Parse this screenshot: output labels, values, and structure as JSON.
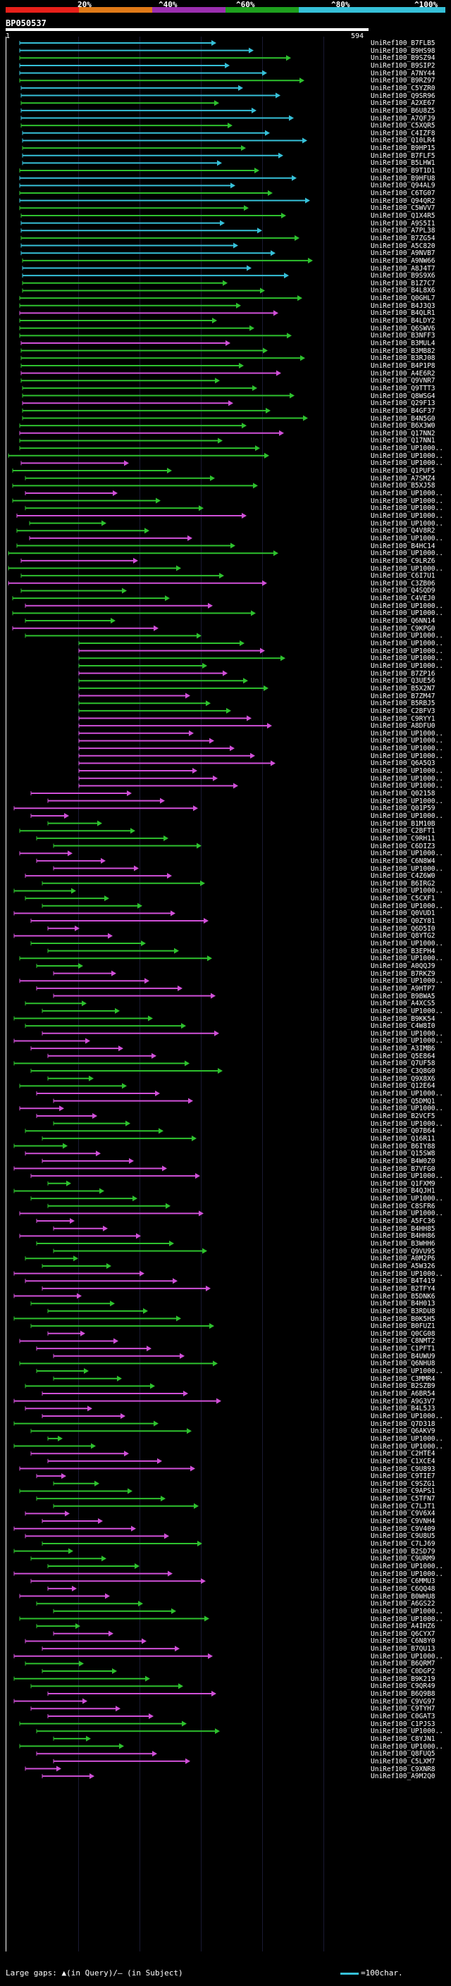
{
  "legend": {
    "labels": [
      "20%",
      "^40%",
      "^60%",
      "^80%",
      "^100%"
    ],
    "colors": [
      "#e8201a",
      "#e07a18",
      "#9b2fb0",
      "#1ea01e",
      "#36c0d8"
    ]
  },
  "query_id": "BP050537",
  "ruler": {
    "start": "1",
    "end": "594"
  },
  "hit_colors": {
    "cyan": "#36c0d8",
    "green": "#2ec12e",
    "magenta": "#d050d8"
  },
  "hits": [
    "UniRef100_B7FLB5",
    "UniRef100_B9HS98",
    "UniRef100_B9SZ94",
    "UniRef100_B9SIP2",
    "UniRef100_A7NY44",
    "UniRef100_B9RZ97",
    "UniRef100_C5YZR0",
    "UniRef100_Q9SR96",
    "UniRef100_A2XE67",
    "UniRef100_B6U8Z5",
    "UniRef100_A7QFJ9",
    "UniRef100_C5XQR5",
    "UniRef100_C4IZF8",
    "UniRef100_Q10LR4",
    "UniRef100_B9HP15",
    "UniRef100_B7FLF5",
    "UniRef100_B5LHW1",
    "UniRef100_B9T1D1",
    "UniRef100_B9HFU8",
    "UniRef100_Q94AL9",
    "UniRef100_C6TG07",
    "UniRef100_Q94QR2",
    "UniRef100_C5WVV7",
    "UniRef100_Q1X4R5",
    "UniRef100_A9S5I1",
    "UniRef100_A7PL38",
    "UniRef100_B7ZG54",
    "UniRef100_A5C820",
    "UniRef100_A9NVB7",
    "UniRef100_A9NW66",
    "UniRef100_A8J4T7",
    "UniRef100_B9S9X6",
    "UniRef100_B1Z7C7",
    "UniRef100_B4L8X6",
    "UniRef100_Q0GHL7",
    "UniRef100_B4J3Q3",
    "UniRef100_B4QLR1",
    "UniRef100_B4LDY2",
    "UniRef100_Q6SWV6",
    "UniRef100_B3NFF3",
    "UniRef100_B3MUL4",
    "UniRef100_B3MB82",
    "UniRef100_B3RJ08",
    "UniRef100_B4P1P8",
    "UniRef100_A4E6R2",
    "UniRef100_Q9VNR7",
    "UniRef100_Q9TTT3",
    "UniRef100_Q8WSG4",
    "UniRef100_Q29F13",
    "UniRef100_B4GF37",
    "UniRef100_B4N5G0",
    "UniRef100_B6X3W0",
    "UniRef100_Q17NN2",
    "UniRef100_Q17NN1",
    "UniRef100_UP1000..",
    "UniRef100_UP1000..",
    "UniRef100_UP1000..",
    "UniRef100_Q1PUF5",
    "UniRef100_A7SMZ4",
    "UniRef100_B5XJ58",
    "UniRef100_UP1000..",
    "UniRef100_UP1000..",
    "UniRef100_UP1000..",
    "UniRef100_UP1000..",
    "UniRef100_UP1000..",
    "UniRef100_Q4V8R2",
    "UniRef100_UP1000..",
    "UniRef100_B4HC14",
    "UniRef100_UP1000..",
    "UniRef100_C9LRZ6",
    "UniRef100_UP1000..",
    "UniRef100_C6I7U1",
    "UniRef100_C3ZB06",
    "UniRef100_Q4SQD9",
    "UniRef100_C4VEJ0",
    "UniRef100_UP1000..",
    "UniRef100_UP1000..",
    "UniRef100_Q6NN14",
    "UniRef100_C9KPG0",
    "UniRef100_UP1000..",
    "UniRef100_UP1000..",
    "UniRef100_UP1000..",
    "UniRef100_UP1000..",
    "UniRef100_UP1000..",
    "UniRef100_B7ZP16",
    "UniRef100_Q3UE56",
    "UniRef100_B5X2N7",
    "UniRef100_B7ZM47",
    "UniRef100_B5RBJ5",
    "UniRef100_C2BFV3",
    "UniRef100_C9RYY1",
    "UniRef100_A8DFU0",
    "UniRef100_UP1000..",
    "UniRef100_UP1000..",
    "UniRef100_UP1000..",
    "UniRef100_UP1000..",
    "UniRef100_Q6A5Q3",
    "UniRef100_UP1000..",
    "UniRef100_UP1000..",
    "UniRef100_UP1000..",
    "UniRef100_Q02158",
    "UniRef100_UP1000..",
    "UniRef100_Q01P59",
    "UniRef100_UP1000..",
    "UniRef100_B1M10B",
    "UniRef100_C2BFT1",
    "UniRef100_C9RH11",
    "UniRef100_C6DIZ3",
    "UniRef100_UP1000..",
    "UniRef100_C6N8W4",
    "UniRef100_UP1000..",
    "UniRef100_C4Z6W0",
    "UniRef100_B6IRG2",
    "UniRef100_UP1000..",
    "UniRef100_C5CXF1",
    "UniRef100_UP1000..",
    "UniRef100_Q0VUD1",
    "UniRef100_Q0ZY81",
    "UniRef100_Q6D5I0",
    "UniRef100_Q8YTG2",
    "UniRef100_UP1000..",
    "UniRef100_B3EPH4",
    "UniRef100_UP1000..",
    "UniRef100_A0QQJ9",
    "UniRef100_B7RKZ9",
    "UniRef100_UP1000..",
    "UniRef100_A9HTP7",
    "UniRef100_B9BWA5",
    "UniRef100_A4XCS5",
    "UniRef100_UP1000..",
    "UniRef100_B9KK54",
    "UniRef100_C4W8I0",
    "UniRef100_UP1000..",
    "UniRef100_UP1000..",
    "UniRef100_A3IMB6",
    "UniRef100_Q5E864",
    "UniRef100_Q7UF58",
    "UniRef100_C3Q8G0",
    "UniRef100_Q9X8X6",
    "UniRef100_Q12E64",
    "UniRef100_UP1000..",
    "UniRef100_Q5DMQ1",
    "UniRef100_UP1000..",
    "UniRef100_B2VCF5",
    "UniRef100_UP1000..",
    "UniRef100_Q07B64",
    "UniRef100_Q16R11",
    "UniRef100_B6IY88",
    "UniRef100_Q15SW8",
    "UniRef100_B4W0Z0",
    "UniRef100_B7VFG0",
    "UniRef100_UP1000..",
    "UniRef100_Q1FXM9",
    "UniRef100_B4QJH1",
    "UniRef100_UP1000..",
    "UniRef100_C8SFR6",
    "UniRef100_UP1000..",
    "UniRef100_A5FC36",
    "UniRef100_B4HH85",
    "UniRef100_B4HH86",
    "UniRef100_B3WHH6",
    "UniRef100_Q9VU95",
    "UniRef100_A0M2P6",
    "UniRef100_A5W326",
    "UniRef100_UP1000..",
    "UniRef100_B4T419",
    "UniRef100_B2TFY4",
    "UniRef100_B5DNK6",
    "UniRef100_B4H013",
    "UniRef100_B3RDU8",
    "UniRef100_B0K5H5",
    "UniRef100_B0FUZ1",
    "UniRef100_Q0CG08",
    "UniRef100_C8NMT2",
    "UniRef100_C1PFT1",
    "UniRef100_B4UWU9",
    "UniRef100_Q6NHU8",
    "UniRef100_UP1000..",
    "UniRef100_C3MMR4",
    "UniRef100_B2SZB9",
    "UniRef100_A6BR54",
    "UniRef100_A9G3V7",
    "UniRef100_B4L5J3",
    "UniRef100_UP1000..",
    "UniRef100_Q7D318",
    "UniRef100_Q6AKV9",
    "UniRef100_UP1000..",
    "UniRef100_UP1000..",
    "UniRef100_C2HTE4",
    "UniRef100_C1XCE4",
    "UniRef100_C9U893",
    "UniRef100_C9TIE7",
    "UniRef100_C9SZG1",
    "UniRef100_C9APS1",
    "UniRef100_C5TFN7",
    "UniRef100_C7LJT1",
    "UniRef100_C9V6X4",
    "UniRef100_C9VNH4",
    "UniRef100_C9V409",
    "UniRef100_C9U8U5",
    "UniRef100_C7LJ69",
    "UniRef100_B2SD79",
    "UniRef100_C9URM9",
    "UniRef100_UP1000..",
    "UniRef100_UP1000..",
    "UniRef100_C6MMU3",
    "UniRef100_C6QQ48",
    "UniRef100_B0WHU8",
    "UniRef100_A6GS22",
    "UniRef100_UP1000..",
    "UniRef100_UP1000..",
    "UniRef100_A4IHZ6",
    "UniRef100_Q6CYX7",
    "UniRef100_C6N8Y0",
    "UniRef100_B7QU13",
    "UniRef100_UP1000..",
    "UniRef100_B6QRM7",
    "UniRef100_C0DGP2",
    "UniRef100_B9K219",
    "UniRef100_C9QR49",
    "UniRef100_B6Q9B8",
    "UniRef100_C9VG97",
    "UniRef100_C9TYH7",
    "UniRef100_C0GAT3",
    "UniRef100_C1PJS3",
    "UniRef100_UP1000..",
    "UniRef100_C8YJN1",
    "UniRef100_UP1000..",
    "UniRef100_Q8FUQ5",
    "UniRef100_C5LXM7",
    "UniRef100_C9XNR8",
    "UniRef100_A9M2Q0"
  ],
  "footer": {
    "left": "Large gaps: ▲(in Query)/— (in Subject)",
    "right": "=100char."
  }
}
